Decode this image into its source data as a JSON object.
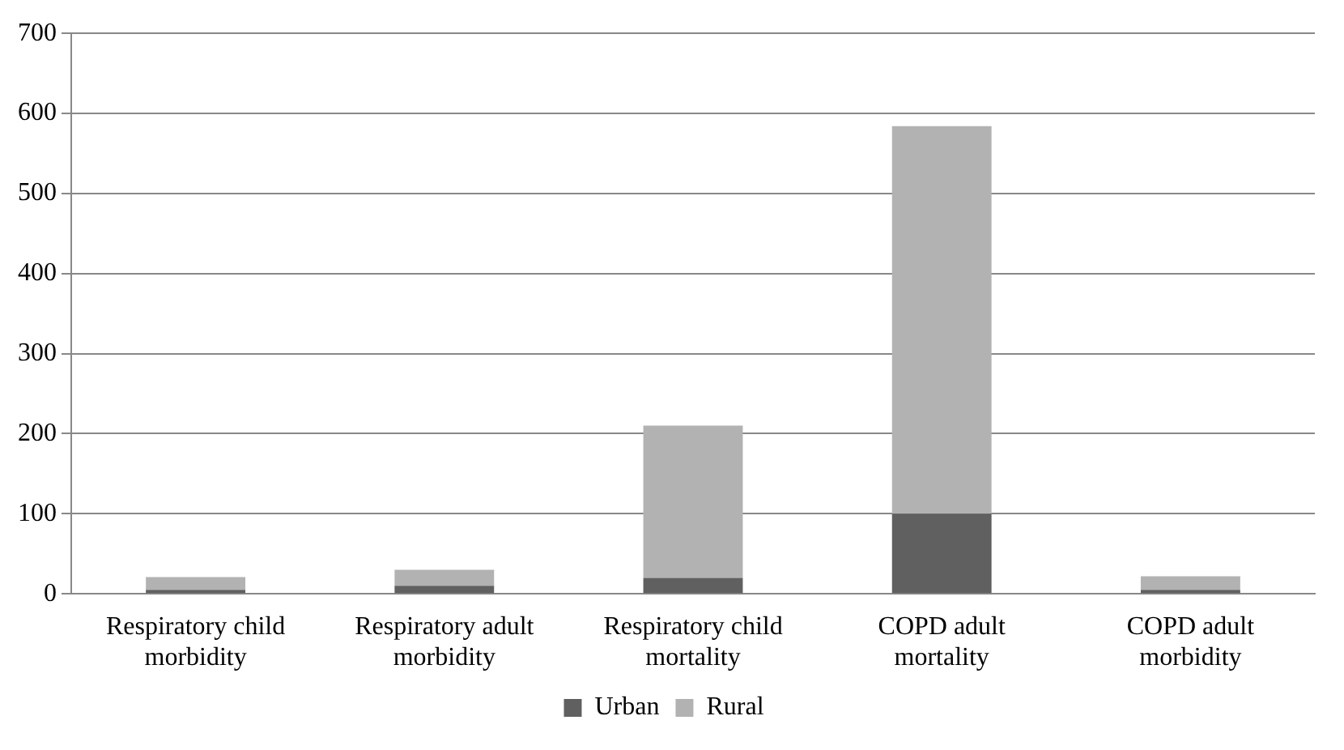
{
  "chart_data": {
    "type": "bar",
    "stacked": true,
    "categories": [
      "Respiratory child morbidity",
      "Respiratory adult morbidity",
      "Respiratory child mortality",
      "COPD adult mortality",
      "COPD adult morbidity"
    ],
    "series": [
      {
        "name": "Urban",
        "color": "#606060",
        "values": [
          5,
          10,
          20,
          100,
          5
        ]
      },
      {
        "name": "Rural",
        "color": "#b2b2b2",
        "values": [
          16,
          20,
          190,
          484,
          17
        ]
      }
    ],
    "ylim": [
      0,
      700
    ],
    "yticks": [
      0,
      100,
      200,
      300,
      400,
      500,
      600,
      700
    ],
    "grid": "y",
    "legend": "bottom"
  }
}
